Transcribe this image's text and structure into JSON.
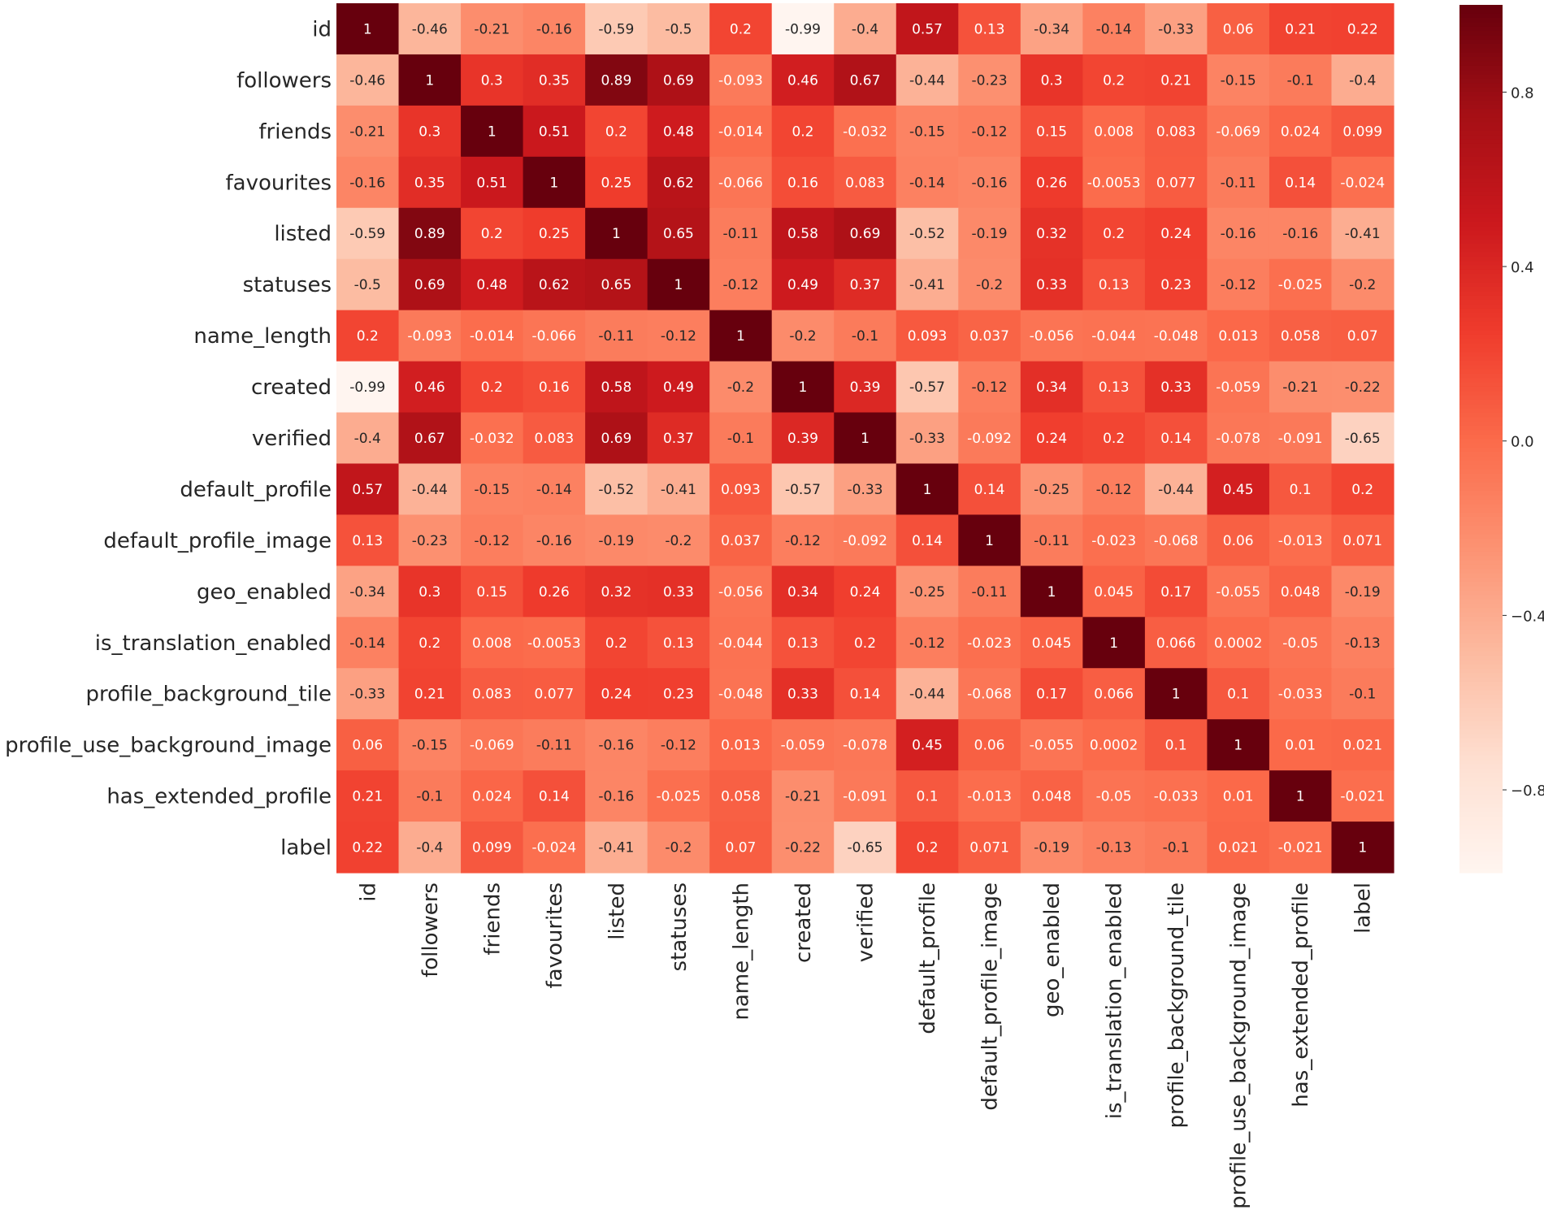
{
  "chart_data": {
    "type": "heatmap",
    "title": "",
    "xlabel": "",
    "ylabel": "",
    "labels": [
      "id",
      "followers",
      "friends",
      "favourites",
      "listed",
      "statuses",
      "name_length",
      "created",
      "verified",
      "default_profile",
      "default_profile_image",
      "geo_enabled",
      "is_translation_enabled",
      "profile_background_tile",
      "profile_use_background_image",
      "has_extended_profile",
      "label"
    ],
    "cell_labels": [
      [
        "1",
        "-0.46",
        "-0.21",
        "-0.16",
        "-0.59",
        "-0.5",
        "0.2",
        "-0.99",
        "-0.4",
        "0.57",
        "0.13",
        "-0.34",
        "-0.14",
        "-0.33",
        "0.06",
        "0.21",
        "0.22"
      ],
      [
        "-0.46",
        "1",
        "0.3",
        "0.35",
        "0.89",
        "0.69",
        "-0.093",
        "0.46",
        "0.67",
        "-0.44",
        "-0.23",
        "0.3",
        "0.2",
        "0.21",
        "-0.15",
        "-0.1",
        "-0.4"
      ],
      [
        "-0.21",
        "0.3",
        "1",
        "0.51",
        "0.2",
        "0.48",
        "-0.014",
        "0.2",
        "-0.032",
        "-0.15",
        "-0.12",
        "0.15",
        "0.008",
        "0.083",
        "-0.069",
        "0.024",
        "0.099"
      ],
      [
        "-0.16",
        "0.35",
        "0.51",
        "1",
        "0.25",
        "0.62",
        "-0.066",
        "0.16",
        "0.083",
        "-0.14",
        "-0.16",
        "0.26",
        "-0.0053",
        "0.077",
        "-0.11",
        "0.14",
        "-0.024"
      ],
      [
        "-0.59",
        "0.89",
        "0.2",
        "0.25",
        "1",
        "0.65",
        "-0.11",
        "0.58",
        "0.69",
        "-0.52",
        "-0.19",
        "0.32",
        "0.2",
        "0.24",
        "-0.16",
        "-0.16",
        "-0.41"
      ],
      [
        "-0.5",
        "0.69",
        "0.48",
        "0.62",
        "0.65",
        "1",
        "-0.12",
        "0.49",
        "0.37",
        "-0.41",
        "-0.2",
        "0.33",
        "0.13",
        "0.23",
        "-0.12",
        "-0.025",
        "-0.2"
      ],
      [
        "0.2",
        "-0.093",
        "-0.014",
        "-0.066",
        "-0.11",
        "-0.12",
        "1",
        "-0.2",
        "-0.1",
        "0.093",
        "0.037",
        "-0.056",
        "-0.044",
        "-0.048",
        "0.013",
        "0.058",
        "0.07"
      ],
      [
        "-0.99",
        "0.46",
        "0.2",
        "0.16",
        "0.58",
        "0.49",
        "-0.2",
        "1",
        "0.39",
        "-0.57",
        "-0.12",
        "0.34",
        "0.13",
        "0.33",
        "-0.059",
        "-0.21",
        "-0.22"
      ],
      [
        "-0.4",
        "0.67",
        "-0.032",
        "0.083",
        "0.69",
        "0.37",
        "-0.1",
        "0.39",
        "1",
        "-0.33",
        "-0.092",
        "0.24",
        "0.2",
        "0.14",
        "-0.078",
        "-0.091",
        "-0.65"
      ],
      [
        "0.57",
        "-0.44",
        "-0.15",
        "-0.14",
        "-0.52",
        "-0.41",
        "0.093",
        "-0.57",
        "-0.33",
        "1",
        "0.14",
        "-0.25",
        "-0.12",
        "-0.44",
        "0.45",
        "0.1",
        "0.2"
      ],
      [
        "0.13",
        "-0.23",
        "-0.12",
        "-0.16",
        "-0.19",
        "-0.2",
        "0.037",
        "-0.12",
        "-0.092",
        "0.14",
        "1",
        "-0.11",
        "-0.023",
        "-0.068",
        "0.06",
        "-0.013",
        "0.071"
      ],
      [
        "-0.34",
        "0.3",
        "0.15",
        "0.26",
        "0.32",
        "0.33",
        "-0.056",
        "0.34",
        "0.24",
        "-0.25",
        "-0.11",
        "1",
        "0.045",
        "0.17",
        "-0.055",
        "0.048",
        "-0.19"
      ],
      [
        "-0.14",
        "0.2",
        "0.008",
        "-0.0053",
        "0.2",
        "0.13",
        "-0.044",
        "0.13",
        "0.2",
        "-0.12",
        "-0.023",
        "0.045",
        "1",
        "0.066",
        "0.0002",
        "-0.05",
        "-0.13"
      ],
      [
        "-0.33",
        "0.21",
        "0.083",
        "0.077",
        "0.24",
        "0.23",
        "-0.048",
        "0.33",
        "0.14",
        "-0.44",
        "-0.068",
        "0.17",
        "0.066",
        "1",
        "0.1",
        "-0.033",
        "-0.1"
      ],
      [
        "0.06",
        "-0.15",
        "-0.069",
        "-0.11",
        "-0.16",
        "-0.12",
        "0.013",
        "-0.059",
        "-0.078",
        "0.45",
        "0.06",
        "-0.055",
        "0.0002",
        "0.1",
        "1",
        "0.01",
        "0.021"
      ],
      [
        "0.21",
        "-0.1",
        "0.024",
        "0.14",
        "-0.16",
        "-0.025",
        "0.058",
        "-0.21",
        "-0.091",
        "0.1",
        "-0.013",
        "0.048",
        "-0.05",
        "-0.033",
        "0.01",
        "1",
        "-0.021"
      ],
      [
        "0.22",
        "-0.4",
        "0.099",
        "-0.024",
        "-0.41",
        "-0.2",
        "0.07",
        "-0.22",
        "-0.65",
        "0.2",
        "0.071",
        "-0.19",
        "-0.13",
        "-0.1",
        "0.021",
        "-0.021",
        "1"
      ]
    ],
    "colorbar": {
      "range": [
        -0.99,
        1
      ],
      "ticks": [
        0.8,
        0.4,
        0.0,
        -0.4,
        -0.8
      ],
      "tick_labels": [
        "0.8",
        "0.4",
        "0.0",
        "−0.4",
        "−0.8"
      ],
      "colormap": "Reds"
    }
  }
}
